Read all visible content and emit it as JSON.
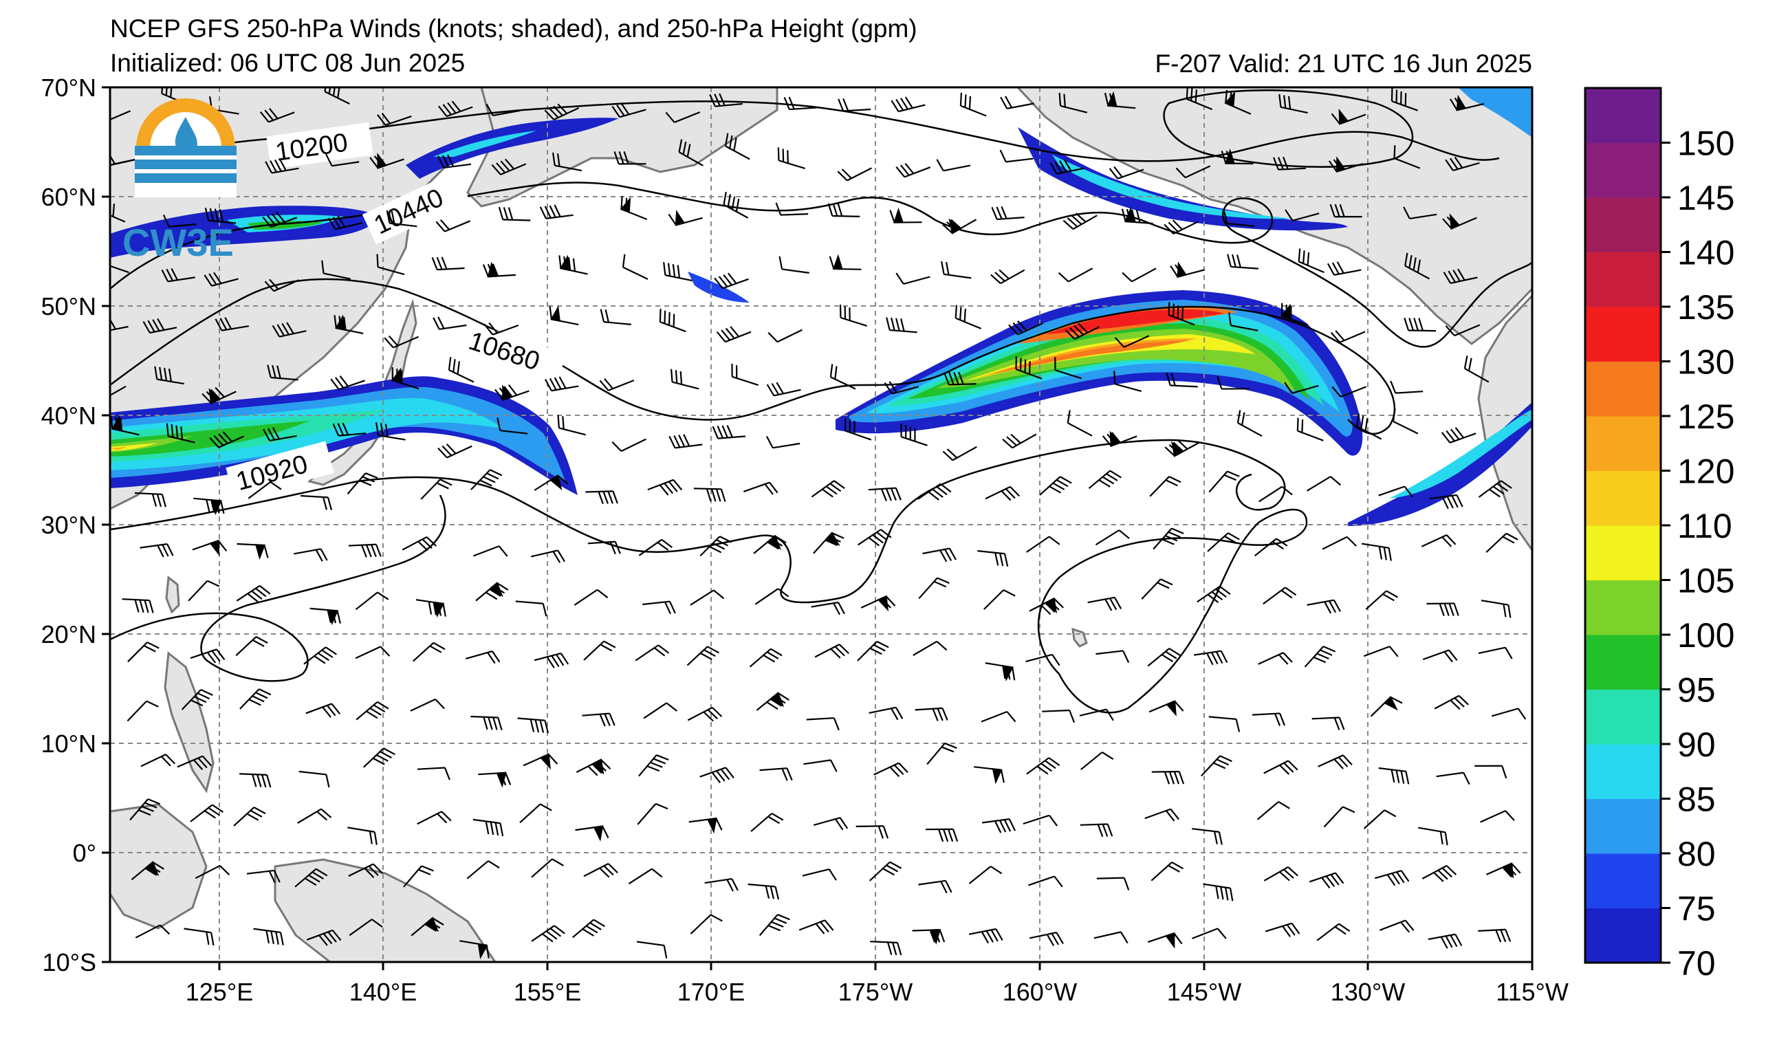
{
  "header": {
    "title": "NCEP GFS 250-hPa Winds (knots; shaded), and 250-hPa Height (gpm)",
    "initialized": "Initialized: 06 UTC 08 Jun 2025",
    "valid": "F-207  Valid: 21 UTC 16 Jun 2025"
  },
  "logo": {
    "text": "CW3E"
  },
  "axes": {
    "lat_labels": [
      "70°N",
      "60°N",
      "50°N",
      "40°N",
      "30°N",
      "20°N",
      "10°N",
      "0°",
      "10°S"
    ],
    "lon_labels": [
      "125°E",
      "140°E",
      "155°E",
      "170°E",
      "175°W",
      "160°W",
      "145°W",
      "130°W",
      "115°W"
    ]
  },
  "contour_labels": [
    "10200",
    "10440",
    "10680",
    "10920"
  ],
  "colorbar": {
    "unit": "knots",
    "ticks": [
      "70",
      "75",
      "80",
      "85",
      "90",
      "95",
      "100",
      "105",
      "110",
      "120",
      "125",
      "130",
      "135",
      "140",
      "145",
      "150"
    ],
    "colors": [
      "#1a22c8",
      "#1f44ee",
      "#2b9cf0",
      "#27d8ee",
      "#27e0b0",
      "#22c02a",
      "#7cd22a",
      "#f2f21e",
      "#f8cd1e",
      "#f8a61e",
      "#f57a1e",
      "#f21e1e",
      "#c81e3c",
      "#a01e5a",
      "#8a1e7a",
      "#6e1e8c"
    ]
  }
}
